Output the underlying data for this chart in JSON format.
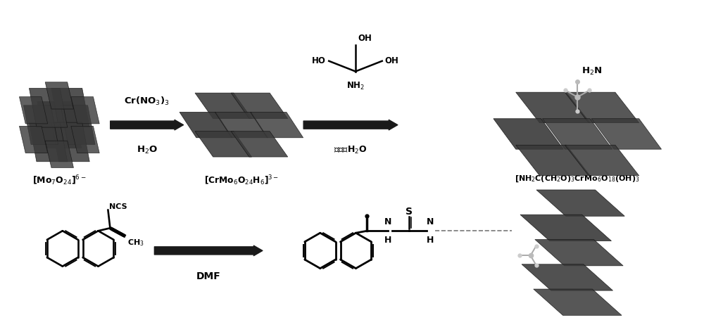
{
  "bg_color": "#ffffff",
  "fig_width": 10.0,
  "fig_height": 4.56,
  "arrow1_top": "Cr(NO$_3$)$_3$",
  "arrow1_bot": "H$_2$O",
  "arrow2_bot": "水热、H$_2$O",
  "arrow3_bot": "DMF",
  "label1": "[Mo$_7$O$_{24}$]$^{6-}$",
  "label2": "[CrMo$_6$O$_{24}$H$_6$]$^{3-}$",
  "label3": "[NH$_2$C(CH$_2$O)$_3$CrMo$_6$O$_{18}$(OH)$_3$",
  "h2n": "H$_2$N",
  "cluster_color": "#3d3d3d",
  "cluster_edge": "#111111",
  "arrow_color": "#1a1a1a",
  "text_color": "#000000"
}
